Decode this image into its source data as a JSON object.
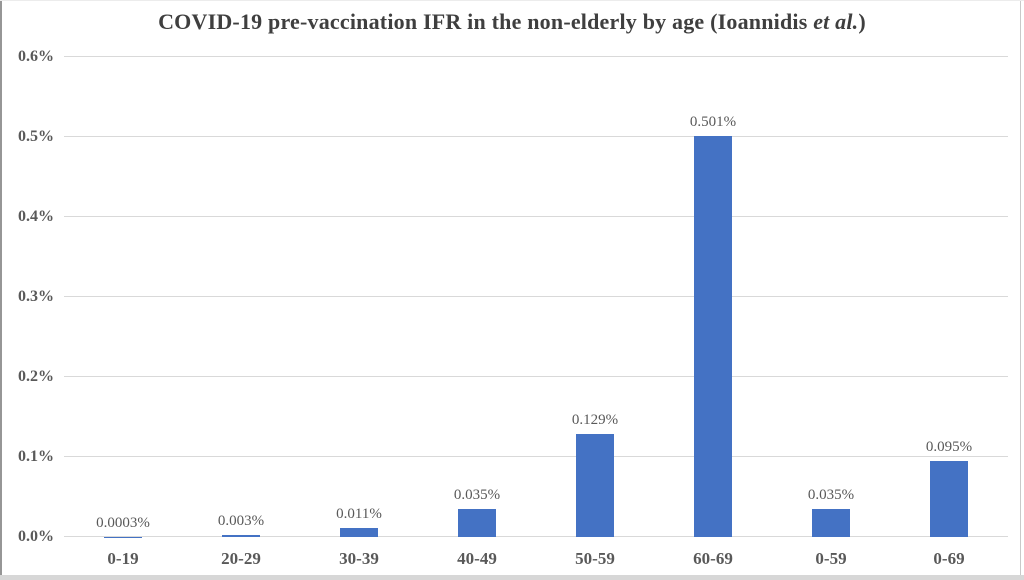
{
  "window": {
    "background": "#ffffff",
    "edge_left_color": "#969696",
    "edge_right_color": "#c9c9c9",
    "edge_bottom_color": "#d7d7d7"
  },
  "chart_data": {
    "type": "bar",
    "title": "COVID-19 pre-vaccination IFR in the non-elderly by age (Ioannidis et al.)",
    "title_parts": {
      "before": "COVID-19 pre-vaccination IFR in the non-elderly by age (Ioannidis ",
      "italic": "et al.",
      "after": ")"
    },
    "categories": [
      "0-19",
      "20-29",
      "30-39",
      "40-49",
      "50-59",
      "60-69",
      "0-59",
      "0-69"
    ],
    "values": [
      0.0003,
      0.003,
      0.011,
      0.035,
      0.129,
      0.501,
      0.035,
      0.095
    ],
    "value_labels": [
      "0.0003%",
      "0.003%",
      "0.011%",
      "0.035%",
      "0.129%",
      "0.501%",
      "0.035%",
      "0.095%"
    ],
    "xlabel": "",
    "ylabel": "",
    "y_ticks": [
      "0.0%",
      "0.1%",
      "0.2%",
      "0.3%",
      "0.4%",
      "0.5%",
      "0.6%"
    ],
    "ylim": [
      0,
      0.6
    ],
    "grid": "horizontal",
    "legend": "none",
    "colors": {
      "bar": "#4472C4",
      "gridline": "#D9D9D9",
      "axis_text": "#595959",
      "title_text": "#3F3F3F"
    }
  }
}
